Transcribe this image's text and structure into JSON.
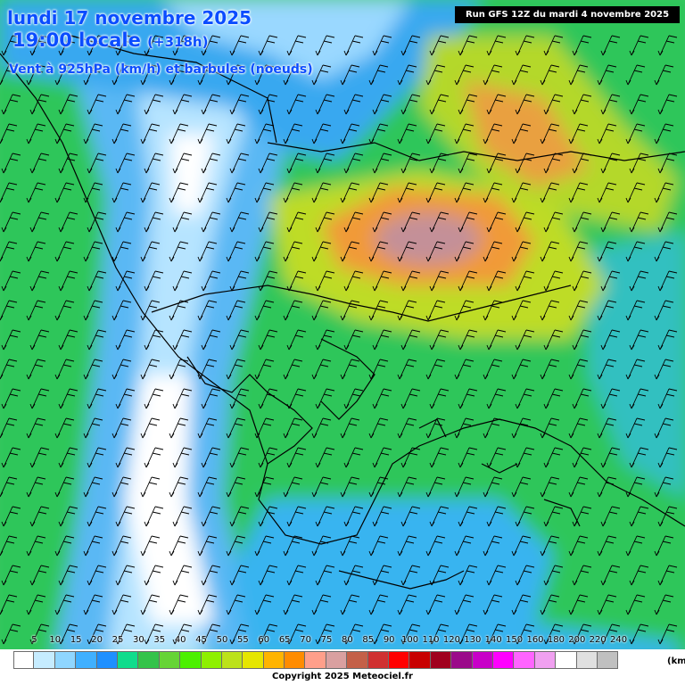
{
  "header": {
    "date": "lundi 17 novembre 2025",
    "time": "19:00 locale",
    "lead": "(+318h)",
    "subtitle": "Vent à 925hPa (km/h) et barbules (noeuds)",
    "run": "Run GFS 12Z du mardi 4 novembre 2025"
  },
  "legend": {
    "unit": "(km",
    "ticks": [
      "5",
      "10",
      "15",
      "20",
      "25",
      "30",
      "35",
      "40",
      "45",
      "50",
      "55",
      "60",
      "65",
      "70",
      "75",
      "80",
      "85",
      "90",
      "100",
      "110",
      "120",
      "130",
      "140",
      "150",
      "160",
      "180",
      "200",
      "220",
      "240"
    ],
    "colors": [
      "#ffffff",
      "#c6ecff",
      "#8fd6ff",
      "#40b0ff",
      "#1e90ff",
      "#10dc8c",
      "#34c34a",
      "#66d436",
      "#4cf000",
      "#8ef000",
      "#bce21a",
      "#e6e600",
      "#ffb400",
      "#ff8c00",
      "#ff9f8a",
      "#d9a0a0",
      "#c46048",
      "#d03030",
      "#ff0000",
      "#c80000",
      "#a0001e",
      "#9b0a8a",
      "#c800c8",
      "#ff00ff",
      "#ff64ff",
      "#f0a0f0",
      "#ffffff",
      "#e0e0e0",
      "#c0c0c0"
    ]
  },
  "copyright": "Copyright 2025 Meteociel.fr",
  "map": {
    "fields": {
      "sea": "#2f9cf2",
      "calm": "#ffffff",
      "light": "#b6e4ff",
      "moderate": "#32d24a",
      "fresh": "#c4dc26",
      "strong": "#f29a3a",
      "gale": "#c29098"
    },
    "barb_direction": "NE"
  }
}
